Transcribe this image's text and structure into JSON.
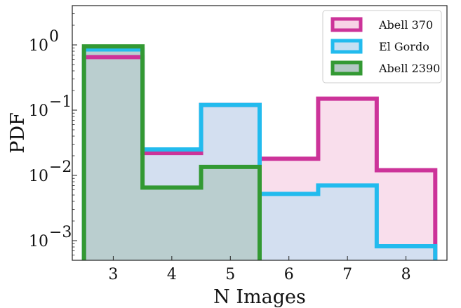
{
  "chart_data": {
    "type": "histogram-step",
    "xlabel": "N Images",
    "ylabel": "PDF",
    "xlim": [
      2.3,
      8.7
    ],
    "ylim": [
      0.0005,
      4
    ],
    "yscale": "log",
    "x_ticks": [
      3,
      4,
      5,
      6,
      7,
      8
    ],
    "x_tick_labels": [
      "3",
      "4",
      "5",
      "6",
      "7",
      "8"
    ],
    "y_ticks": [
      0.001,
      0.01,
      0.1,
      1
    ],
    "y_tick_labels": [
      "10",
      "10",
      "10",
      "10"
    ],
    "y_tick_exponents": [
      "−3",
      "−2",
      "−1",
      "0"
    ],
    "bin_edges": [
      2.5,
      3.5,
      4.5,
      5.5,
      6.5,
      7.5,
      8.5
    ],
    "legend_position": "top-right",
    "series": [
      {
        "name": "Abell 370",
        "color": "#cc3399",
        "fill": "#f7d3e6",
        "values": [
          0.65,
          0.022,
          0.12,
          0.018,
          0.15,
          0.012
        ]
      },
      {
        "name": "El Gordo",
        "color": "#22bbee",
        "fill": "#c6dff2",
        "values": [
          0.85,
          0.025,
          0.12,
          0.0052,
          0.007,
          0.00082
        ]
      },
      {
        "name": "Abell 2390",
        "color": "#339933",
        "fill": "#b2c8c4",
        "values": [
          0.95,
          0.0065,
          0.0135,
          null,
          null,
          null
        ]
      }
    ]
  }
}
